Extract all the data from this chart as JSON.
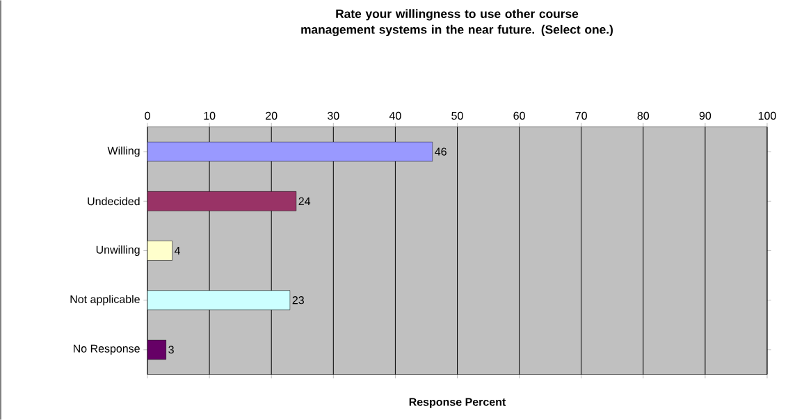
{
  "chart_data": {
    "type": "bar",
    "orientation": "horizontal",
    "title": "Rate your willingness to use other course management systems  in the near future. (Select one.)",
    "xlabel": "Response Percent",
    "categories": [
      "Willing",
      "Undecided",
      "Unwilling",
      "Not applicable",
      "No Response"
    ],
    "values": [
      46,
      24,
      4,
      23,
      3
    ],
    "colors": [
      "#9999ff",
      "#993366",
      "#ffffcc",
      "#ccffff",
      "#660066"
    ],
    "xlim": [
      0,
      100
    ],
    "xticks": [
      0,
      10,
      20,
      30,
      40,
      50,
      60,
      70,
      80,
      90,
      100
    ],
    "grid": "x",
    "data_labels": true
  }
}
